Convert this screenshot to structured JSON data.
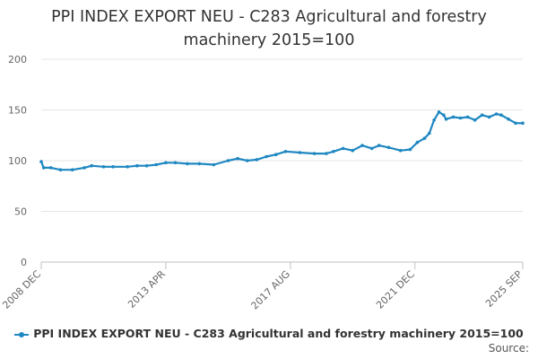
{
  "chart_data": {
    "type": "line",
    "title_lines": [
      "PPI INDEX EXPORT NEU - C283 Agricultural and forestry",
      "machinery 2015=100"
    ],
    "xlabel": "",
    "ylabel": "",
    "x_range": [
      "2008 DEC",
      "2025 SEP"
    ],
    "x_tick_labels": [
      "2008 DEC",
      "2013 APR",
      "2017 AUG",
      "2021 DEC",
      "2025 SEP"
    ],
    "y_ticks": [
      0,
      50,
      100,
      150,
      200
    ],
    "ylim": [
      0,
      200
    ],
    "grid": true,
    "legend_position": "bottom",
    "series": [
      {
        "name": "PPI INDEX EXPORT NEU - C283 Agricultural and forestry machinery 2015=100",
        "color": "#1f87c1",
        "points": [
          [
            "2008-12",
            99
          ],
          [
            "2009-01",
            93
          ],
          [
            "2009-04",
            93
          ],
          [
            "2009-08",
            91
          ],
          [
            "2010-01",
            91
          ],
          [
            "2010-06",
            93
          ],
          [
            "2010-09",
            95
          ],
          [
            "2011-02",
            94
          ],
          [
            "2011-06",
            94
          ],
          [
            "2011-12",
            94
          ],
          [
            "2012-04",
            95
          ],
          [
            "2012-08",
            95
          ],
          [
            "2012-12",
            96
          ],
          [
            "2013-04",
            98
          ],
          [
            "2013-08",
            98
          ],
          [
            "2014-01",
            97
          ],
          [
            "2014-06",
            97
          ],
          [
            "2014-12",
            96
          ],
          [
            "2015-06",
            100
          ],
          [
            "2015-10",
            102
          ],
          [
            "2016-02",
            100
          ],
          [
            "2016-06",
            101
          ],
          [
            "2016-10",
            104
          ],
          [
            "2017-02",
            106
          ],
          [
            "2017-06",
            109
          ],
          [
            "2017-12",
            108
          ],
          [
            "2018-06",
            107
          ],
          [
            "2018-11",
            107
          ],
          [
            "2019-02",
            109
          ],
          [
            "2019-06",
            112
          ],
          [
            "2019-10",
            110
          ],
          [
            "2020-02",
            115
          ],
          [
            "2020-06",
            112
          ],
          [
            "2020-09",
            115
          ],
          [
            "2021-01",
            113
          ],
          [
            "2021-06",
            110
          ],
          [
            "2021-10",
            111
          ],
          [
            "2022-01",
            118
          ],
          [
            "2022-04",
            122
          ],
          [
            "2022-06",
            127
          ],
          [
            "2022-08",
            140
          ],
          [
            "2022-10",
            148
          ],
          [
            "2022-12",
            145
          ],
          [
            "2023-01",
            141
          ],
          [
            "2023-04",
            143
          ],
          [
            "2023-07",
            142
          ],
          [
            "2023-10",
            143
          ],
          [
            "2024-01",
            140
          ],
          [
            "2024-04",
            145
          ],
          [
            "2024-07",
            143
          ],
          [
            "2024-10",
            146
          ],
          [
            "2024-12",
            145
          ],
          [
            "2025-03",
            141
          ],
          [
            "2025-06",
            137
          ],
          [
            "2025-09",
            137
          ]
        ]
      }
    ]
  },
  "source_label": "Source:"
}
